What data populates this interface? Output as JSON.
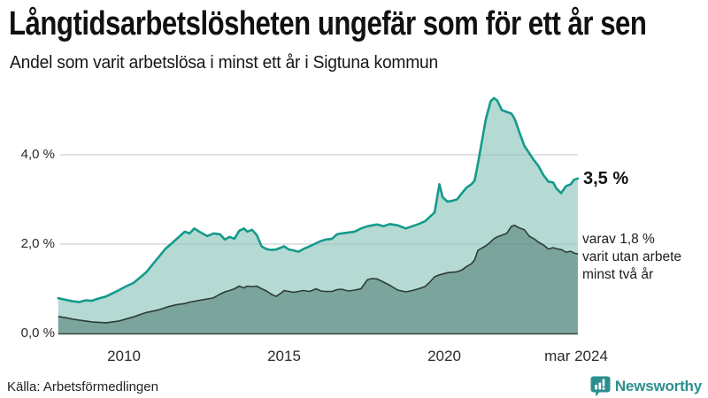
{
  "header": {
    "title": "Långtidsarbetslösheten ungefär som för ett år sen",
    "subtitle": "Andel som varit arbetslösa i minst ett år i Sigtuna kommun"
  },
  "chart_data": {
    "type": "area",
    "title": "Långtidsarbetslösheten ungefär som för ett år sen",
    "subtitle": "Andel som varit arbetslösa i minst ett år i Sigtuna kommun",
    "unit": "%",
    "x_range": [
      2007.95,
      2024.17
    ],
    "ylim": [
      0,
      5.6
    ],
    "y_gridline_values": [
      2,
      4
    ],
    "y_tick_labels": [
      "0,0 %",
      "2,0 %",
      "4,0 %"
    ],
    "x_tick_labels": [
      "2010",
      "2015",
      "2020",
      "mar 2024"
    ],
    "x_tick_values": [
      2010,
      2015,
      2020,
      2024.17
    ],
    "grid": "horizontal-only",
    "legend_position": "right-annotations",
    "x": [
      2007.95,
      2008.2,
      2008.4,
      2008.6,
      2008.8,
      2009.0,
      2009.2,
      2009.45,
      2009.65,
      2009.85,
      2010.05,
      2010.3,
      2010.5,
      2010.7,
      2010.9,
      2011.1,
      2011.3,
      2011.5,
      2011.7,
      2011.9,
      2012.05,
      2012.2,
      2012.35,
      2012.6,
      2012.8,
      2013.0,
      2013.15,
      2013.3,
      2013.45,
      2013.6,
      2013.75,
      2013.85,
      2014.0,
      2014.15,
      2014.3,
      2014.45,
      2014.6,
      2014.75,
      2014.9,
      2015.0,
      2015.15,
      2015.3,
      2015.45,
      2015.6,
      2015.8,
      2016.0,
      2016.15,
      2016.3,
      2016.5,
      2016.65,
      2016.8,
      2017.0,
      2017.2,
      2017.4,
      2017.6,
      2017.75,
      2017.9,
      2018.1,
      2018.3,
      2018.55,
      2018.8,
      2019.0,
      2019.2,
      2019.4,
      2019.55,
      2019.7,
      2019.85,
      2019.95,
      2020.1,
      2020.25,
      2020.4,
      2020.55,
      2020.7,
      2020.85,
      2020.95,
      2021.05,
      2021.2,
      2021.3,
      2021.45,
      2021.55,
      2021.65,
      2021.8,
      2021.95,
      2022.1,
      2022.2,
      2022.35,
      2022.5,
      2022.65,
      2022.8,
      2022.95,
      2023.1,
      2023.25,
      2023.4,
      2023.5,
      2023.65,
      2023.8,
      2023.95,
      2024.05,
      2024.17
    ],
    "series": [
      {
        "name": "Arbetslösa minst ett år",
        "line_color": "#149a8b",
        "fill_color": "#b5dad4",
        "line_width": 2.6,
        "values": [
          0.79,
          0.75,
          0.72,
          0.7,
          0.74,
          0.73,
          0.78,
          0.83,
          0.9,
          0.97,
          1.05,
          1.13,
          1.25,
          1.37,
          1.55,
          1.72,
          1.9,
          2.02,
          2.15,
          2.28,
          2.24,
          2.35,
          2.28,
          2.18,
          2.24,
          2.22,
          2.1,
          2.16,
          2.12,
          2.3,
          2.35,
          2.28,
          2.32,
          2.2,
          1.95,
          1.89,
          1.87,
          1.88,
          1.92,
          1.95,
          1.88,
          1.86,
          1.83,
          1.89,
          1.95,
          2.02,
          2.07,
          2.1,
          2.12,
          2.22,
          2.24,
          2.26,
          2.28,
          2.35,
          2.4,
          2.42,
          2.44,
          2.4,
          2.45,
          2.42,
          2.35,
          2.4,
          2.45,
          2.51,
          2.61,
          2.71,
          3.34,
          3.05,
          2.95,
          2.97,
          3.0,
          3.14,
          3.27,
          3.34,
          3.42,
          3.8,
          4.4,
          4.8,
          5.2,
          5.27,
          5.22,
          5.0,
          4.96,
          4.92,
          4.8,
          4.5,
          4.2,
          4.04,
          3.88,
          3.74,
          3.54,
          3.4,
          3.38,
          3.25,
          3.14,
          3.3,
          3.34,
          3.44,
          3.47
        ]
      },
      {
        "name": "varav utan arbete minst två år",
        "line_color": "#2d3c39",
        "fill_color": "#7ba49d",
        "line_width": 1.6,
        "values": [
          0.38,
          0.35,
          0.32,
          0.3,
          0.28,
          0.26,
          0.25,
          0.24,
          0.26,
          0.28,
          0.32,
          0.37,
          0.42,
          0.47,
          0.5,
          0.53,
          0.58,
          0.62,
          0.65,
          0.67,
          0.7,
          0.72,
          0.74,
          0.77,
          0.8,
          0.88,
          0.93,
          0.96,
          1.0,
          1.06,
          1.02,
          1.06,
          1.05,
          1.06,
          1.0,
          0.95,
          0.88,
          0.83,
          0.9,
          0.96,
          0.94,
          0.92,
          0.94,
          0.96,
          0.94,
          1.0,
          0.95,
          0.94,
          0.94,
          0.98,
          0.99,
          0.95,
          0.97,
          1.0,
          1.2,
          1.23,
          1.22,
          1.15,
          1.08,
          0.97,
          0.93,
          0.96,
          1.0,
          1.05,
          1.15,
          1.27,
          1.31,
          1.33,
          1.36,
          1.37,
          1.38,
          1.42,
          1.5,
          1.56,
          1.65,
          1.86,
          1.92,
          1.96,
          2.05,
          2.12,
          2.16,
          2.2,
          2.24,
          2.4,
          2.42,
          2.36,
          2.32,
          2.18,
          2.12,
          2.04,
          1.98,
          1.89,
          1.92,
          1.9,
          1.88,
          1.82,
          1.84,
          1.8,
          1.78
        ]
      }
    ],
    "annotations": {
      "latest_total": "3,5 %",
      "two_year_line1": "varav 1,8 %",
      "two_year_line2": "varit utan arbete",
      "two_year_line3": "minst två år"
    },
    "colors": {
      "gridline": "#dcdee3",
      "axis_line": "#39453f",
      "brand_teal": "#2b8f8d"
    }
  },
  "footer": {
    "source": "Källa: Arbetsförmedlingen",
    "brand": "Newsworthy"
  }
}
